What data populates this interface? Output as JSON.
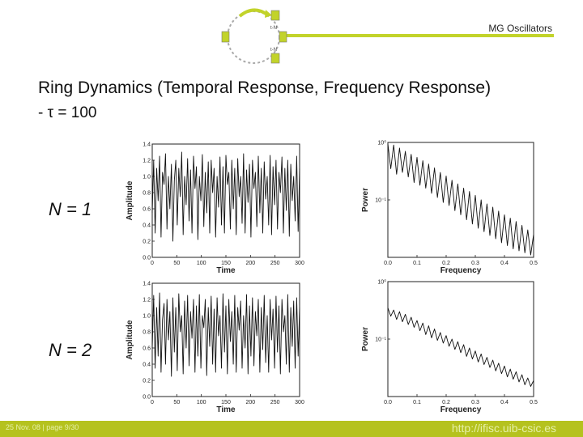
{
  "header": {
    "title": "MG Oscillators",
    "accent_color": "#c2d32a"
  },
  "logo": {
    "icon": "ring-oscillator-diagram-icon",
    "node_labels": [
      "t-N",
      "t-N"
    ]
  },
  "slide": {
    "title": "Ring Dynamics (Temporal Response, Frequency Response)",
    "subtitle": "- τ = 100"
  },
  "panels": [
    {
      "label": "N = 1"
    },
    {
      "label": "N = 2"
    }
  ],
  "footer": {
    "left": "25 Nov. 08  |   page 9/30",
    "right": "http://ifisc.uib-csic.es",
    "background": "#b5c21e"
  },
  "chart_data": [
    {
      "type": "line",
      "panel": "N = 1",
      "xlabel": "Time",
      "ylabel": "Amplitude",
      "xlim": [
        0,
        300
      ],
      "ylim": [
        0,
        1.4
      ],
      "xticks": [
        0,
        50,
        100,
        150,
        200,
        250,
        300
      ],
      "yticks": [
        0.0,
        0.2,
        0.4,
        0.6,
        0.8,
        1.0,
        1.2,
        1.4
      ],
      "xtick_labels": [
        "0",
        "50",
        "100",
        "150",
        "200",
        "250",
        "300"
      ],
      "ytick_labels": [
        "0.0",
        "0.2",
        "0.4",
        "0.6",
        "0.8",
        "1.0",
        "1.2",
        "1.4"
      ],
      "x": [
        0,
        3,
        6,
        9,
        12,
        15,
        18,
        21,
        24,
        27,
        30,
        33,
        36,
        39,
        42,
        45,
        48,
        51,
        54,
        57,
        60,
        63,
        66,
        69,
        72,
        75,
        78,
        81,
        84,
        87,
        90,
        93,
        96,
        99,
        102,
        105,
        108,
        111,
        114,
        117,
        120,
        123,
        126,
        129,
        132,
        135,
        138,
        141,
        144,
        147,
        150,
        153,
        156,
        159,
        162,
        165,
        168,
        171,
        174,
        177,
        180,
        183,
        186,
        189,
        192,
        195,
        198,
        201,
        204,
        207,
        210,
        213,
        216,
        219,
        222,
        225,
        228,
        231,
        234,
        237,
        240,
        243,
        246,
        249,
        252,
        255,
        258,
        261,
        264,
        267,
        270,
        273,
        276,
        279,
        282,
        285,
        288,
        291,
        294,
        297,
        300
      ],
      "y": [
        0.55,
        1.2,
        0.3,
        1.1,
        0.7,
        1.25,
        0.25,
        1.05,
        0.9,
        1.28,
        0.35,
        1.0,
        0.6,
        1.15,
        0.2,
        0.95,
        1.2,
        0.4,
        1.1,
        0.75,
        1.3,
        0.28,
        1.0,
        0.65,
        1.22,
        0.45,
        1.08,
        0.3,
        1.25,
        0.85,
        1.12,
        0.22,
        1.0,
        0.7,
        1.27,
        0.38,
        1.05,
        0.55,
        1.18,
        0.3,
        1.2,
        0.8,
        1.1,
        0.25,
        1.0,
        0.62,
        1.24,
        0.4,
        1.12,
        0.3,
        1.26,
        0.9,
        1.05,
        0.35,
        1.2,
        0.6,
        1.1,
        0.28,
        1.22,
        0.75,
        1.0,
        0.42,
        1.28,
        0.3,
        1.08,
        0.68,
        1.15,
        0.25,
        1.2,
        0.85,
        1.05,
        0.38,
        1.25,
        0.55,
        1.1,
        0.3,
        1.18,
        0.72,
        1.0,
        0.4,
        1.26,
        0.28,
        1.12,
        0.65,
        1.2,
        0.35,
        1.05,
        0.8,
        1.24,
        0.3,
        1.1,
        0.58,
        1.2,
        0.26,
        1.15,
        0.7,
        1.0,
        0.45,
        1.25,
        0.32,
        1.1
      ]
    },
    {
      "type": "line",
      "panel": "N = 1",
      "xlabel": "Frequency",
      "ylabel": "Power",
      "xlim": [
        0,
        0.5
      ],
      "ylim": [
        0.01,
        1
      ],
      "yscale": "log",
      "xticks": [
        0,
        0.1,
        0.2,
        0.3,
        0.4,
        0.5
      ],
      "xtick_labels": [
        "0.0",
        "0.1",
        "0.2",
        "0.3",
        "0.4",
        "0.5"
      ],
      "yticks": [
        1,
        0.1
      ],
      "ytick_labels": [
        "10⁰",
        "10⁻¹"
      ],
      "x": [
        0.0,
        0.01,
        0.02,
        0.03,
        0.04,
        0.05,
        0.06,
        0.07,
        0.08,
        0.09,
        0.1,
        0.11,
        0.12,
        0.13,
        0.14,
        0.15,
        0.16,
        0.17,
        0.18,
        0.19,
        0.2,
        0.21,
        0.22,
        0.23,
        0.24,
        0.25,
        0.26,
        0.27,
        0.28,
        0.29,
        0.3,
        0.31,
        0.32,
        0.33,
        0.34,
        0.35,
        0.36,
        0.37,
        0.38,
        0.39,
        0.4,
        0.41,
        0.42,
        0.43,
        0.44,
        0.45,
        0.46,
        0.47,
        0.48,
        0.49,
        0.5
      ],
      "y": [
        0.95,
        0.35,
        0.9,
        0.28,
        0.8,
        0.3,
        0.7,
        0.25,
        0.62,
        0.2,
        0.55,
        0.18,
        0.48,
        0.16,
        0.42,
        0.13,
        0.36,
        0.11,
        0.3,
        0.09,
        0.26,
        0.08,
        0.22,
        0.065,
        0.19,
        0.055,
        0.16,
        0.045,
        0.14,
        0.038,
        0.12,
        0.032,
        0.1,
        0.028,
        0.085,
        0.024,
        0.075,
        0.021,
        0.064,
        0.018,
        0.055,
        0.016,
        0.048,
        0.014,
        0.042,
        0.013,
        0.036,
        0.012,
        0.03,
        0.011,
        0.025
      ]
    },
    {
      "type": "line",
      "panel": "N = 2",
      "xlabel": "Time",
      "ylabel": "Amplitude",
      "xlim": [
        0,
        300
      ],
      "ylim": [
        0,
        1.4
      ],
      "xticks": [
        0,
        50,
        100,
        150,
        200,
        250,
        300
      ],
      "yticks": [
        0.0,
        0.2,
        0.4,
        0.6,
        0.8,
        1.0,
        1.2,
        1.4
      ],
      "xtick_labels": [
        "0",
        "50",
        "100",
        "150",
        "200",
        "250",
        "300"
      ],
      "ytick_labels": [
        "0.0",
        "0.2",
        "0.4",
        "0.6",
        "0.8",
        "1.0",
        "1.2",
        "1.4"
      ],
      "x": [
        0,
        3,
        6,
        9,
        12,
        15,
        18,
        21,
        24,
        27,
        30,
        33,
        36,
        39,
        42,
        45,
        48,
        51,
        54,
        57,
        60,
        63,
        66,
        69,
        72,
        75,
        78,
        81,
        84,
        87,
        90,
        93,
        96,
        99,
        102,
        105,
        108,
        111,
        114,
        117,
        120,
        123,
        126,
        129,
        132,
        135,
        138,
        141,
        144,
        147,
        150,
        153,
        156,
        159,
        162,
        165,
        168,
        171,
        174,
        177,
        180,
        183,
        186,
        189,
        192,
        195,
        198,
        201,
        204,
        207,
        210,
        213,
        216,
        219,
        222,
        225,
        228,
        231,
        234,
        237,
        240,
        243,
        246,
        249,
        252,
        255,
        258,
        261,
        264,
        267,
        270,
        273,
        276,
        279,
        282,
        285,
        288,
        291,
        294,
        297,
        300
      ],
      "y": [
        0.6,
        1.25,
        0.35,
        1.1,
        0.5,
        1.28,
        0.3,
        0.95,
        1.15,
        0.4,
        1.2,
        0.7,
        1.05,
        0.25,
        1.22,
        0.55,
        1.1,
        0.32,
        1.27,
        0.8,
        1.0,
        0.28,
        1.18,
        0.6,
        1.25,
        0.38,
        1.05,
        0.72,
        1.2,
        0.3,
        1.12,
        0.5,
        1.26,
        0.35,
        1.0,
        0.85,
        1.2,
        0.26,
        1.1,
        0.62,
        1.24,
        0.4,
        1.08,
        0.3,
        1.22,
        0.75,
        1.0,
        0.35,
        1.27,
        0.55,
        1.12,
        0.28,
        1.2,
        0.68,
        1.05,
        0.4,
        1.25,
        0.3,
        1.1,
        0.82,
        1.18,
        0.35,
        1.0,
        0.6,
        1.26,
        0.28,
        1.12,
        0.5,
        1.22,
        0.38,
        1.05,
        0.75,
        1.2,
        0.3,
        1.1,
        0.58,
        1.25,
        0.42,
        1.0,
        0.3,
        1.2,
        0.7,
        1.08,
        0.35,
        1.24,
        0.55,
        1.12,
        0.28,
        1.2,
        0.8,
        1.0,
        0.4,
        1.26,
        0.3,
        1.1,
        0.62,
        1.18,
        0.35,
        1.22,
        0.5,
        1.1
      ]
    },
    {
      "type": "line",
      "panel": "N = 2",
      "xlabel": "Frequency",
      "ylabel": "Power",
      "xlim": [
        0,
        0.5
      ],
      "ylim": [
        0.01,
        1
      ],
      "yscale": "log",
      "xticks": [
        0,
        0.1,
        0.2,
        0.3,
        0.4,
        0.5
      ],
      "xtick_labels": [
        "0.0",
        "0.1",
        "0.2",
        "0.3",
        "0.4",
        "0.5"
      ],
      "yticks": [
        1,
        0.1
      ],
      "ytick_labels": [
        "10⁰",
        "10⁻¹"
      ],
      "x": [
        0.0,
        0.01,
        0.02,
        0.03,
        0.04,
        0.05,
        0.06,
        0.07,
        0.08,
        0.09,
        0.1,
        0.11,
        0.12,
        0.13,
        0.14,
        0.15,
        0.16,
        0.17,
        0.18,
        0.19,
        0.2,
        0.21,
        0.22,
        0.23,
        0.24,
        0.25,
        0.26,
        0.27,
        0.28,
        0.29,
        0.3,
        0.31,
        0.32,
        0.33,
        0.34,
        0.35,
        0.36,
        0.37,
        0.38,
        0.39,
        0.4,
        0.41,
        0.42,
        0.43,
        0.44,
        0.45,
        0.46,
        0.47,
        0.48,
        0.49,
        0.5
      ],
      "y": [
        0.35,
        0.25,
        0.32,
        0.22,
        0.3,
        0.2,
        0.27,
        0.18,
        0.24,
        0.16,
        0.21,
        0.14,
        0.19,
        0.12,
        0.17,
        0.105,
        0.15,
        0.095,
        0.13,
        0.085,
        0.115,
        0.075,
        0.1,
        0.066,
        0.09,
        0.058,
        0.08,
        0.05,
        0.07,
        0.045,
        0.062,
        0.04,
        0.055,
        0.036,
        0.048,
        0.032,
        0.043,
        0.028,
        0.038,
        0.025,
        0.034,
        0.022,
        0.03,
        0.02,
        0.027,
        0.018,
        0.024,
        0.016,
        0.021,
        0.015,
        0.019
      ]
    }
  ]
}
